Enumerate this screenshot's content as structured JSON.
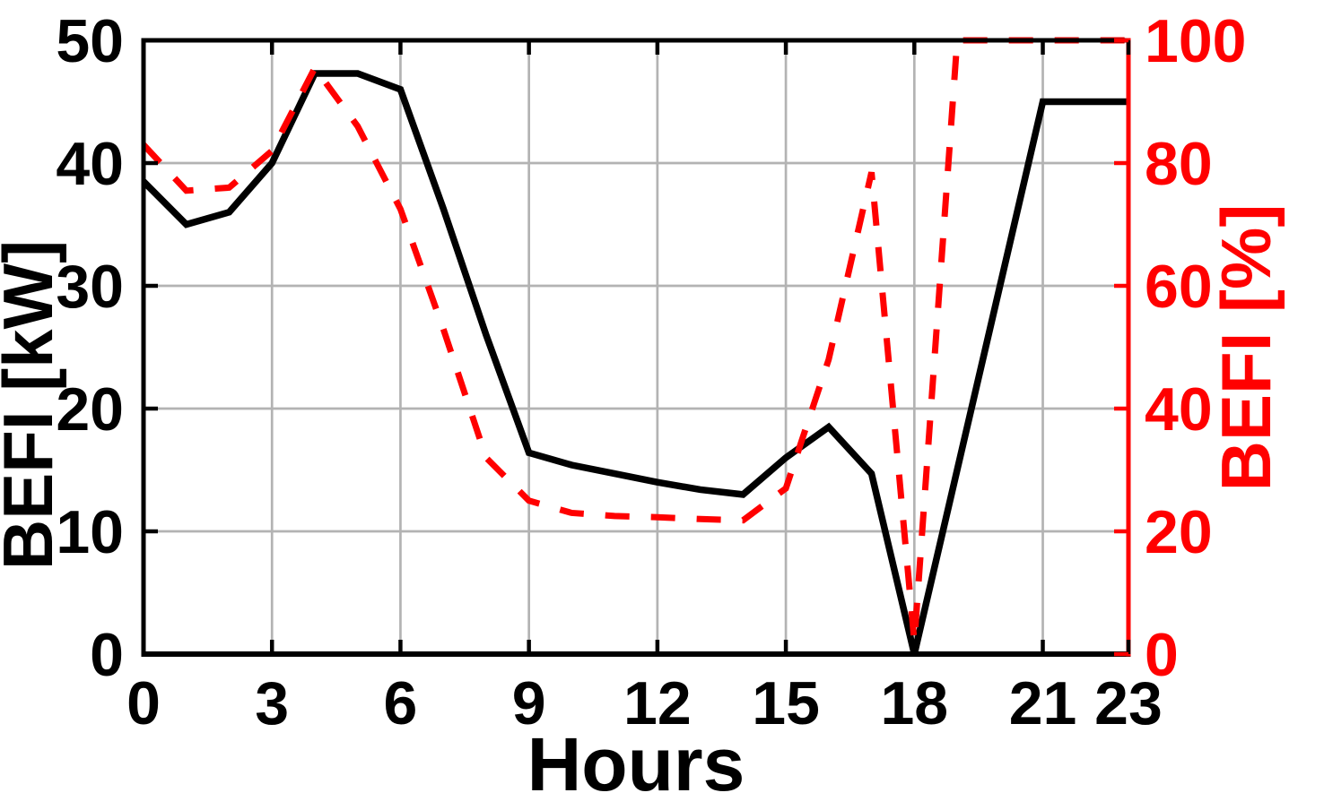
{
  "chart_data": {
    "type": "line",
    "title": "",
    "xlabel": "Hours",
    "ylabel_left": "BEFI [kW]",
    "ylabel_right": "BEFI [%]",
    "xlim": [
      0,
      23
    ],
    "ylim_left": [
      0,
      50
    ],
    "ylim_right": [
      0,
      100
    ],
    "xticks": [
      0,
      3,
      6,
      9,
      12,
      15,
      18,
      21,
      23
    ],
    "yticks_left": [
      0,
      10,
      20,
      30,
      40,
      50
    ],
    "yticks_right": [
      0,
      20,
      40,
      60,
      80,
      100
    ],
    "grid": true,
    "legend": "none",
    "x": [
      0,
      1,
      2,
      3,
      4,
      5,
      6,
      7,
      8,
      9,
      10,
      11,
      12,
      13,
      14,
      15,
      16,
      17,
      18,
      19,
      20,
      21,
      22,
      23
    ],
    "series": [
      {
        "name": "BEFI [kW]",
        "axis": "left",
        "color": "#000000",
        "style": "solid",
        "line_width": 7.5,
        "values": [
          38.5,
          35,
          36,
          40,
          47.3,
          47.3,
          46,
          36.3,
          26,
          16.4,
          15.4,
          14.7,
          14,
          13.4,
          13,
          16,
          18.5,
          14.7,
          0,
          15,
          30,
          45,
          45,
          45
        ]
      },
      {
        "name": "BEFI [%]",
        "axis": "right",
        "color": "#ff0000",
        "style": "dashed",
        "line_width": 7,
        "values": [
          83,
          75.5,
          76,
          82,
          95.5,
          86,
          72.5,
          53,
          32,
          25,
          23,
          22.5,
          22.3,
          22,
          21.8,
          27,
          48,
          78.5,
          2,
          100,
          100,
          100,
          100,
          100
        ]
      }
    ],
    "colors": {
      "left_axis": "#000000",
      "right_axis": "#ff0000",
      "grid": "#b3b3b3",
      "background": "#ffffff"
    }
  }
}
